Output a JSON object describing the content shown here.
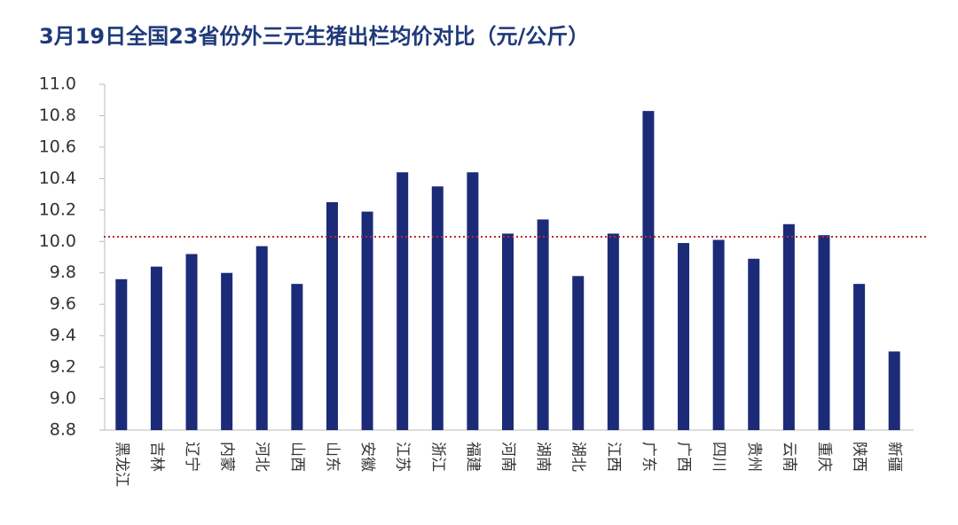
{
  "chart_data": {
    "type": "bar",
    "title": "3月19日全国23省份外三元生猪出栏均价对比（元/公斤）",
    "categories": [
      "黑龙江",
      "吉林",
      "辽宁",
      "内蒙",
      "河北",
      "山西",
      "山东",
      "安徽",
      "江苏",
      "浙江",
      "福建",
      "河南",
      "湖南",
      "湖北",
      "江西",
      "广东",
      "广西",
      "四川",
      "贵州",
      "云南",
      "重庆",
      "陕西",
      "新疆"
    ],
    "values": [
      9.76,
      9.84,
      9.92,
      9.8,
      9.97,
      9.73,
      10.25,
      10.19,
      10.44,
      10.35,
      10.44,
      10.05,
      10.14,
      9.78,
      10.05,
      10.83,
      9.99,
      10.01,
      9.89,
      10.11,
      10.04,
      9.73,
      9.3
    ],
    "color": "#1c2b78",
    "reference_line": 10.03,
    "reference_color": "#c0282d",
    "ylim": [
      8.8,
      11.0
    ],
    "yticks": [
      8.8,
      {
        "value": 9.0,
        "label": "9.0"
      },
      9.2,
      9.4,
      9.6,
      9.8,
      {
        "value": 10.0,
        "label": "10.0"
      },
      10.2,
      10.4,
      10.6,
      10.8,
      {
        "value": 11.0,
        "label": "11.0"
      }
    ]
  }
}
